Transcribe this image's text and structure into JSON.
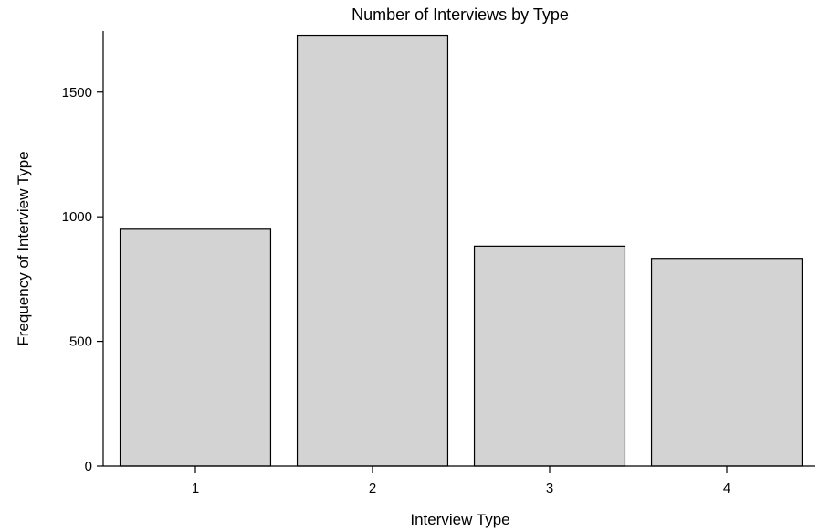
{
  "chart_data": {
    "type": "bar",
    "title": "Number of Interviews by Type",
    "xlabel": "Interview Type",
    "ylabel": "Frequency of Interview Type",
    "categories": [
      "1",
      "2",
      "3",
      "4"
    ],
    "values": [
      950,
      1728,
      882,
      833
    ],
    "ylim": [
      0,
      1730
    ],
    "yticks": [
      0,
      500,
      1000,
      1500
    ],
    "grid": false,
    "colors": {
      "bar_fill": "#d3d3d3",
      "bar_stroke": "#000000"
    }
  }
}
